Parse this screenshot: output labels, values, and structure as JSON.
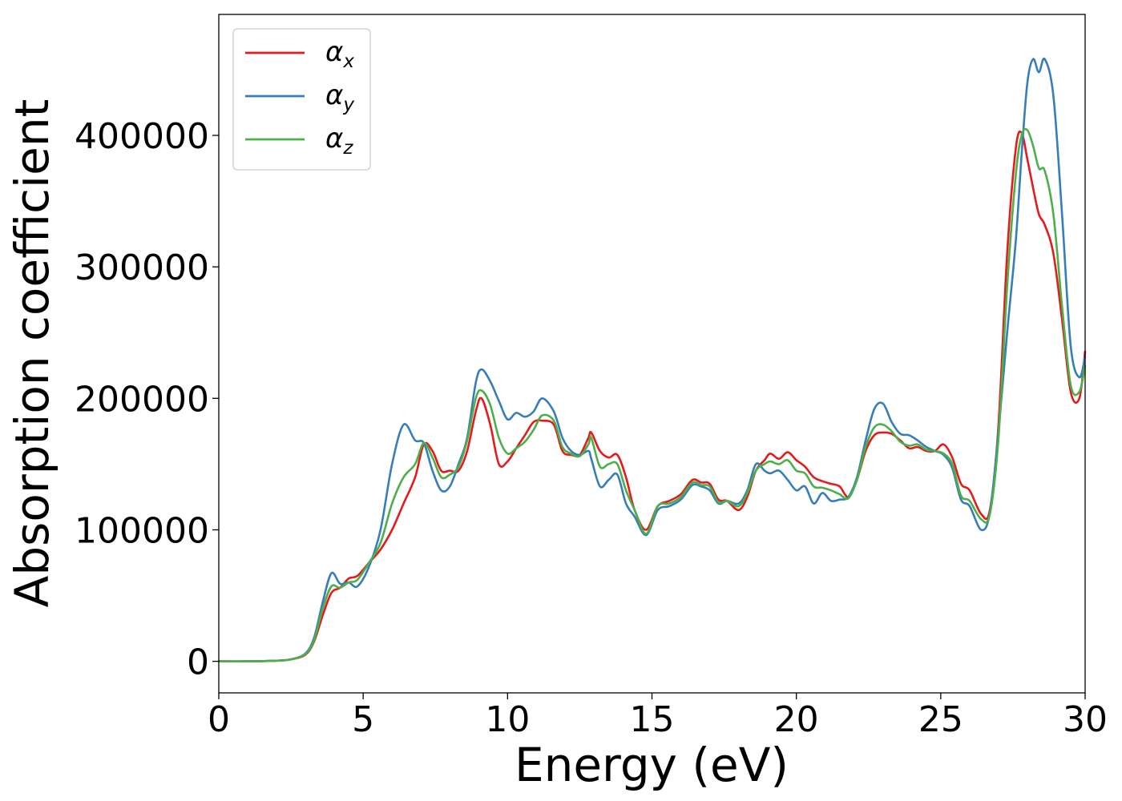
{
  "chart_data": {
    "type": "line",
    "xlabel": "Energy (eV)",
    "ylabel": "Absorption coefficient",
    "xlim": [
      0,
      30
    ],
    "ylim": [
      -24000,
      492000
    ],
    "xticks": [
      0,
      5,
      10,
      15,
      20,
      25,
      30
    ],
    "yticks": [
      0,
      100000,
      200000,
      300000,
      400000
    ],
    "xtick_labels": [
      "0",
      "5",
      "10",
      "15",
      "20",
      "25",
      "30"
    ],
    "ytick_labels": [
      "0",
      "100000",
      "200000",
      "300000",
      "400000"
    ],
    "grid": false,
    "legend_position": "top-left",
    "series": [
      {
        "name": "α",
        "subscript": "x",
        "color": "#e41a1c",
        "x": [
          0,
          1,
          2,
          2.5,
          3,
          3.3,
          3.6,
          3.9,
          4.2,
          4.5,
          4.8,
          5.2,
          5.6,
          6,
          6.4,
          6.8,
          7.1,
          7.4,
          7.7,
          8,
          8.3,
          8.6,
          8.9,
          9.1,
          9.4,
          9.7,
          10,
          10.3,
          10.6,
          10.9,
          11.2,
          11.6,
          11.9,
          12.2,
          12.5,
          12.8,
          12.9,
          13.2,
          13.5,
          13.8,
          14.1,
          14.4,
          14.8,
          15.2,
          15.6,
          16,
          16.4,
          16.7,
          17,
          17.3,
          17.6,
          18,
          18.3,
          18.6,
          18.9,
          19.1,
          19.4,
          19.7,
          20,
          20.3,
          20.6,
          20.9,
          21.2,
          21.5,
          21.8,
          22.1,
          22.4,
          22.7,
          23,
          23.3,
          23.6,
          23.9,
          24.2,
          24.5,
          24.8,
          25.1,
          25.4,
          25.7,
          26,
          26.4,
          26.7,
          27,
          27.3,
          27.6,
          27.8,
          28,
          28.2,
          28.4,
          28.6,
          28.9,
          29.2,
          29.5,
          29.8,
          30
        ],
        "y": [
          0,
          0,
          500,
          1500,
          5000,
          15000,
          35000,
          52000,
          56000,
          63000,
          65000,
          75000,
          85000,
          100000,
          120000,
          140000,
          165000,
          160000,
          145000,
          145000,
          145000,
          160000,
          190000,
          200000,
          180000,
          150000,
          152000,
          162000,
          172000,
          182000,
          183000,
          180000,
          160000,
          157000,
          157000,
          170000,
          174000,
          160000,
          155000,
          157000,
          140000,
          115000,
          100000,
          118000,
          122000,
          127000,
          138000,
          136000,
          135000,
          123000,
          122000,
          115000,
          125000,
          145000,
          153000,
          158000,
          154000,
          159000,
          153000,
          148000,
          140000,
          137000,
          135000,
          133000,
          125000,
          138000,
          160000,
          172000,
          174000,
          173000,
          168000,
          162000,
          163000,
          160000,
          160000,
          165000,
          155000,
          135000,
          130000,
          112000,
          115000,
          180000,
          310000,
          390000,
          402000,
          382000,
          360000,
          340000,
          332000,
          310000,
          260000,
          205000,
          200000,
          236000
        ]
      },
      {
        "name": "α",
        "subscript": "y",
        "color": "#377eb8",
        "x": [
          0,
          1,
          2,
          2.5,
          3,
          3.3,
          3.6,
          3.9,
          4.2,
          4.5,
          4.8,
          5.2,
          5.6,
          6,
          6.4,
          6.8,
          7.1,
          7.4,
          7.7,
          8,
          8.3,
          8.6,
          8.9,
          9.1,
          9.4,
          9.7,
          10,
          10.3,
          10.6,
          10.9,
          11.2,
          11.6,
          11.9,
          12.2,
          12.5,
          12.8,
          12.9,
          13.2,
          13.5,
          13.8,
          14.1,
          14.4,
          14.8,
          15.2,
          15.6,
          16,
          16.4,
          16.7,
          17,
          17.3,
          17.6,
          18,
          18.3,
          18.6,
          18.9,
          19.1,
          19.4,
          19.7,
          20,
          20.3,
          20.6,
          20.9,
          21.2,
          21.5,
          21.8,
          22.1,
          22.4,
          22.7,
          23,
          23.3,
          23.6,
          23.9,
          24.2,
          24.5,
          24.8,
          25.1,
          25.4,
          25.7,
          26,
          26.4,
          26.7,
          27,
          27.3,
          27.6,
          27.8,
          28,
          28.2,
          28.4,
          28.6,
          28.9,
          29.2,
          29.5,
          29.8,
          30
        ],
        "y": [
          0,
          0,
          500,
          1500,
          6000,
          18000,
          45000,
          67000,
          59000,
          60000,
          57000,
          72000,
          100000,
          150000,
          180000,
          168000,
          166000,
          145000,
          130000,
          133000,
          150000,
          170000,
          212000,
          222000,
          213000,
          198000,
          184000,
          189000,
          186000,
          190000,
          200000,
          190000,
          170000,
          160000,
          157000,
          160000,
          154000,
          133000,
          138000,
          142000,
          120000,
          110000,
          96000,
          115000,
          118000,
          123000,
          134000,
          133000,
          130000,
          120000,
          122000,
          120000,
          130000,
          150000,
          145000,
          143000,
          145000,
          138000,
          130000,
          133000,
          120000,
          128000,
          122000,
          123000,
          125000,
          140000,
          168000,
          192000,
          196000,
          182000,
          173000,
          172000,
          168000,
          163000,
          160000,
          157000,
          147000,
          123000,
          118000,
          100000,
          113000,
          175000,
          250000,
          320000,
          385000,
          440000,
          458000,
          448000,
          458000,
          430000,
          340000,
          240000,
          216000,
          232000
        ]
      },
      {
        "name": "α",
        "subscript": "z",
        "color": "#4daf4a",
        "x": [
          0,
          1,
          2,
          2.5,
          3,
          3.3,
          3.6,
          3.9,
          4.2,
          4.5,
          4.8,
          5.2,
          5.6,
          6,
          6.4,
          6.8,
          7.1,
          7.4,
          7.7,
          8,
          8.3,
          8.6,
          8.9,
          9.1,
          9.4,
          9.7,
          10,
          10.3,
          10.6,
          10.9,
          11.2,
          11.6,
          11.9,
          12.2,
          12.5,
          12.8,
          12.9,
          13.2,
          13.5,
          13.8,
          14.1,
          14.4,
          14.8,
          15.2,
          15.6,
          16,
          16.4,
          16.7,
          17,
          17.3,
          17.6,
          18,
          18.3,
          18.6,
          18.9,
          19.1,
          19.4,
          19.7,
          20,
          20.3,
          20.6,
          20.9,
          21.2,
          21.5,
          21.8,
          22.1,
          22.4,
          22.7,
          23,
          23.3,
          23.6,
          23.9,
          24.2,
          24.5,
          24.8,
          25.1,
          25.4,
          25.7,
          26,
          26.4,
          26.7,
          27,
          27.3,
          27.6,
          27.8,
          28,
          28.2,
          28.4,
          28.6,
          28.9,
          29.2,
          29.5,
          29.8,
          30
        ],
        "y": [
          0,
          0,
          500,
          1500,
          5500,
          16000,
          40000,
          57000,
          56000,
          60000,
          62000,
          75000,
          90000,
          120000,
          140000,
          150000,
          166000,
          155000,
          140000,
          142000,
          148000,
          168000,
          200000,
          206000,
          195000,
          170000,
          158000,
          162000,
          167000,
          176000,
          187000,
          183000,
          163000,
          158000,
          156000,
          165000,
          170000,
          148000,
          150000,
          150000,
          130000,
          115000,
          97000,
          118000,
          120000,
          125000,
          136000,
          134000,
          133000,
          121000,
          122000,
          118000,
          128000,
          145000,
          150000,
          152000,
          150000,
          153000,
          145000,
          143000,
          133000,
          132000,
          130000,
          127000,
          124000,
          138000,
          163000,
          178000,
          180000,
          175000,
          167000,
          164000,
          165000,
          161000,
          160000,
          158000,
          150000,
          126000,
          122000,
          108000,
          112000,
          170000,
          285000,
          370000,
          400000,
          404000,
          392000,
          375000,
          373000,
          340000,
          270000,
          210000,
          205000,
          225000
        ]
      }
    ]
  }
}
